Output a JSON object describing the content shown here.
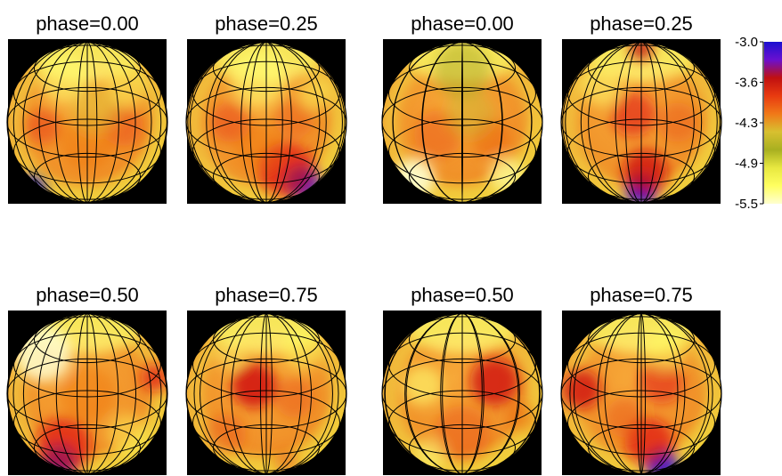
{
  "panels": [
    {
      "label": "phase=0.00",
      "blobs": [
        {
          "u": -0.55,
          "v": 0.05,
          "r": 0.22,
          "c": "#e83a10",
          "o": 0.55
        },
        {
          "u": 0.45,
          "v": 0.05,
          "r": 0.25,
          "c": "#e83a10",
          "o": 0.45
        },
        {
          "u": 0.0,
          "v": 0.25,
          "r": 0.35,
          "c": "#ee6a10",
          "o": 0.4
        },
        {
          "u": -0.3,
          "v": -0.55,
          "r": 0.3,
          "c": "#ffff70",
          "o": 0.6
        },
        {
          "u": 0.5,
          "v": -0.45,
          "r": 0.25,
          "c": "#ffff60",
          "o": 0.5
        },
        {
          "u": -0.7,
          "v": 0.85,
          "r": 0.18,
          "c": "#2020d0",
          "o": 0.9
        },
        {
          "u": 0.1,
          "v": -0.15,
          "r": 0.3,
          "c": "#d8d040",
          "o": 0.35
        }
      ]
    },
    {
      "label": "phase=0.25",
      "blobs": [
        {
          "u": 0.45,
          "v": 0.75,
          "r": 0.22,
          "c": "#1515d0",
          "o": 0.95
        },
        {
          "u": 0.25,
          "v": 0.6,
          "r": 0.35,
          "c": "#e01515",
          "o": 0.7
        },
        {
          "u": -0.45,
          "v": 0.0,
          "r": 0.25,
          "c": "#e83a10",
          "o": 0.5
        },
        {
          "u": 0.35,
          "v": -0.05,
          "r": 0.25,
          "c": "#e85010",
          "o": 0.45
        },
        {
          "u": -0.1,
          "v": -0.55,
          "r": 0.35,
          "c": "#ffff70",
          "o": 0.6
        },
        {
          "u": 0.6,
          "v": -0.35,
          "r": 0.2,
          "c": "#ffff60",
          "o": 0.5
        },
        {
          "u": -0.1,
          "v": 0.3,
          "r": 0.3,
          "c": "#ee6a10",
          "o": 0.4
        }
      ]
    },
    {
      "label": "phase=0.00",
      "blobs": [
        {
          "u": 0.0,
          "v": -0.65,
          "r": 0.35,
          "c": "#a8a820",
          "o": 0.5
        },
        {
          "u": -0.3,
          "v": 0.15,
          "r": 0.3,
          "c": "#e85010",
          "o": 0.45
        },
        {
          "u": 0.35,
          "v": 0.2,
          "r": 0.25,
          "c": "#e85010",
          "o": 0.4
        },
        {
          "u": -0.6,
          "v": 0.7,
          "r": 0.25,
          "c": "#ffffd0",
          "o": 0.9
        },
        {
          "u": 0.55,
          "v": 0.65,
          "r": 0.22,
          "c": "#ffffa0",
          "o": 0.7
        },
        {
          "u": 0.1,
          "v": -0.1,
          "r": 0.3,
          "c": "#c0c030",
          "o": 0.35
        }
      ]
    },
    {
      "label": "phase=0.25",
      "blobs": [
        {
          "u": 0.0,
          "v": 0.85,
          "r": 0.2,
          "c": "#1515d0",
          "o": 0.95
        },
        {
          "u": 0.05,
          "v": 0.62,
          "r": 0.28,
          "c": "#d01010",
          "o": 0.8
        },
        {
          "u": -0.1,
          "v": -0.1,
          "r": 0.28,
          "c": "#e01515",
          "o": 0.6
        },
        {
          "u": 0.0,
          "v": -0.92,
          "r": 0.15,
          "c": "#c01010",
          "o": 0.8
        },
        {
          "u": -0.5,
          "v": -0.45,
          "r": 0.25,
          "c": "#ffff70",
          "o": 0.55
        },
        {
          "u": 0.45,
          "v": 0.0,
          "r": 0.25,
          "c": "#e85010",
          "o": 0.45
        }
      ]
    },
    {
      "label": "phase=0.50",
      "blobs": [
        {
          "u": -0.35,
          "v": 0.85,
          "r": 0.22,
          "c": "#1515d0",
          "o": 0.95
        },
        {
          "u": -0.3,
          "v": 0.65,
          "r": 0.35,
          "c": "#e01515",
          "o": 0.7
        },
        {
          "u": 0.85,
          "v": -0.2,
          "r": 0.18,
          "c": "#e01515",
          "o": 0.7
        },
        {
          "u": -0.55,
          "v": -0.5,
          "r": 0.35,
          "c": "#ffffd0",
          "o": 0.85
        },
        {
          "u": 0.0,
          "v": 0.0,
          "r": 0.35,
          "c": "#ee6a10",
          "o": 0.4
        },
        {
          "u": 0.5,
          "v": 0.5,
          "r": 0.25,
          "c": "#ffff60",
          "o": 0.45
        }
      ]
    },
    {
      "label": "phase=0.75",
      "blobs": [
        {
          "u": -0.15,
          "v": -0.1,
          "r": 0.28,
          "c": "#d01010",
          "o": 0.85
        },
        {
          "u": 0.35,
          "v": 0.05,
          "r": 0.25,
          "c": "#e85010",
          "o": 0.45
        },
        {
          "u": -0.5,
          "v": 0.5,
          "r": 0.25,
          "c": "#e85010",
          "o": 0.45
        },
        {
          "u": 0.45,
          "v": -0.55,
          "r": 0.25,
          "c": "#ffff60",
          "o": 0.55
        },
        {
          "u": 0.25,
          "v": 0.85,
          "r": 0.15,
          "c": "#e85010",
          "o": 0.5
        },
        {
          "u": -0.45,
          "v": -0.5,
          "r": 0.2,
          "c": "#ffff70",
          "o": 0.45
        }
      ]
    },
    {
      "label": "phase=0.50",
      "blobs": [
        {
          "u": 0.4,
          "v": -0.15,
          "r": 0.3,
          "c": "#d01010",
          "o": 0.8
        },
        {
          "u": -0.5,
          "v": -0.1,
          "r": 0.25,
          "c": "#ffff70",
          "o": 0.6
        },
        {
          "u": 0.0,
          "v": 0.5,
          "r": 0.35,
          "c": "#e85010",
          "o": 0.45
        },
        {
          "u": -0.4,
          "v": 0.75,
          "r": 0.2,
          "c": "#ffff80",
          "o": 0.5
        },
        {
          "u": 0.75,
          "v": 0.3,
          "r": 0.18,
          "c": "#e85010",
          "o": 0.4
        }
      ]
    },
    {
      "label": "phase=0.75",
      "blobs": [
        {
          "u": 0.25,
          "v": 0.88,
          "r": 0.2,
          "c": "#1515d0",
          "o": 0.95
        },
        {
          "u": 0.1,
          "v": 0.6,
          "r": 0.3,
          "c": "#e01515",
          "o": 0.7
        },
        {
          "u": -0.75,
          "v": -0.05,
          "r": 0.25,
          "c": "#d01010",
          "o": 0.8
        },
        {
          "u": 0.25,
          "v": -0.15,
          "r": 0.28,
          "c": "#e01515",
          "o": 0.55
        },
        {
          "u": 0.3,
          "v": -0.55,
          "r": 0.25,
          "c": "#ffff60",
          "o": 0.55
        },
        {
          "u": -0.2,
          "v": 0.3,
          "r": 0.25,
          "c": "#e85010",
          "o": 0.45
        }
      ]
    }
  ],
  "colorbar": {
    "ticks": [
      "-3.0",
      "-3.6",
      "-4.3",
      "-4.9",
      "-5.5"
    ],
    "stops": [
      "#1a10d0",
      "#6a10d0",
      "#c01010",
      "#e83a10",
      "#f07818",
      "#d8c030",
      "#a8b020",
      "#e8e840",
      "#ffff60",
      "#ffffd0"
    ]
  },
  "style": {
    "base_color": "#f09028",
    "grid_color": "#000000",
    "background": "#000000"
  }
}
